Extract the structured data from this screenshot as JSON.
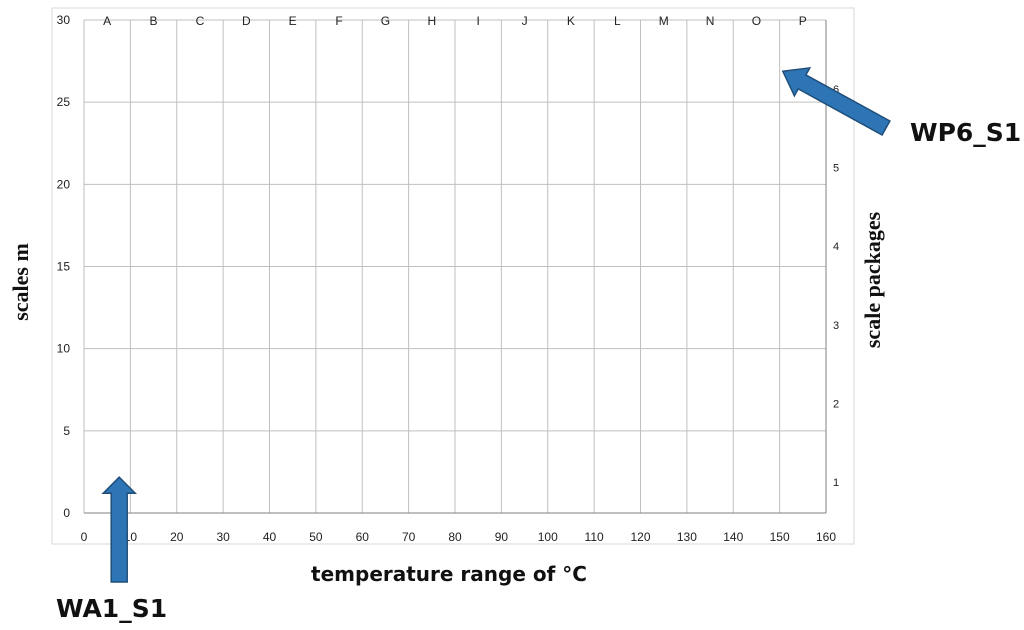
{
  "chart_data": {
    "type": "scatter",
    "title": "",
    "xlabel": "temperature range of °C",
    "ylabel": "scales m",
    "y2label": "scale packages",
    "xlim": [
      0,
      160
    ],
    "ylim": [
      0,
      30
    ],
    "x_ticks": [
      "0",
      "10",
      "20",
      "30",
      "40",
      "50",
      "60",
      "70",
      "80",
      "90",
      "100",
      "110",
      "120",
      "130",
      "140",
      "150",
      "160"
    ],
    "y_ticks": [
      "0",
      "5",
      "10",
      "15",
      "20",
      "25",
      "30"
    ],
    "y2_ticks": [
      "1",
      "2",
      "3",
      "4",
      "5",
      "6"
    ],
    "column_letters": [
      "A",
      "B",
      "C",
      "D",
      "E",
      "F",
      "G",
      "H",
      "I",
      "J",
      "K",
      "L",
      "M",
      "N",
      "O",
      "P"
    ],
    "grid": true,
    "series": [],
    "annotations": [
      {
        "text": "WA1_S1",
        "points_to": {
          "x": 5,
          "y": 2.3
        }
      },
      {
        "text": "WP6_S1",
        "points_to": {
          "x": 155,
          "y": 27
        }
      }
    ],
    "colors": {
      "arrow_fill": "#2E75B6",
      "arrow_stroke": "#1F4E79",
      "grid": "#BFBFBF",
      "axis": "#808080"
    }
  }
}
